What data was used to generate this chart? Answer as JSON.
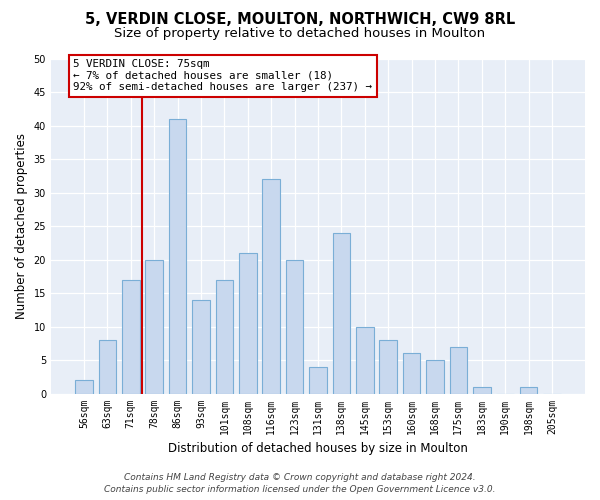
{
  "title": "5, VERDIN CLOSE, MOULTON, NORTHWICH, CW9 8RL",
  "subtitle": "Size of property relative to detached houses in Moulton",
  "xlabel": "Distribution of detached houses by size in Moulton",
  "ylabel": "Number of detached properties",
  "bins": [
    "56sqm",
    "63sqm",
    "71sqm",
    "78sqm",
    "86sqm",
    "93sqm",
    "101sqm",
    "108sqm",
    "116sqm",
    "123sqm",
    "131sqm",
    "138sqm",
    "145sqm",
    "153sqm",
    "160sqm",
    "168sqm",
    "175sqm",
    "183sqm",
    "190sqm",
    "198sqm",
    "205sqm"
  ],
  "values": [
    2,
    8,
    17,
    20,
    41,
    14,
    17,
    21,
    32,
    20,
    4,
    24,
    10,
    8,
    6,
    5,
    7,
    1,
    0,
    1,
    0
  ],
  "bar_color": "#c8d8ee",
  "bar_edge_color": "#7aaed6",
  "vline_color": "#cc0000",
  "annotation_text": "5 VERDIN CLOSE: 75sqm\n← 7% of detached houses are smaller (18)\n92% of semi-detached houses are larger (237) →",
  "annotation_box_color": "white",
  "annotation_box_edge": "#cc0000",
  "ylim": [
    0,
    50
  ],
  "yticks": [
    0,
    5,
    10,
    15,
    20,
    25,
    30,
    35,
    40,
    45,
    50
  ],
  "footer_line1": "Contains HM Land Registry data © Crown copyright and database right 2024.",
  "footer_line2": "Contains public sector information licensed under the Open Government Licence v3.0.",
  "bg_color": "#ffffff",
  "plot_bg_color": "#e8eef7",
  "title_fontsize": 10.5,
  "subtitle_fontsize": 9.5,
  "tick_fontsize": 7,
  "ylabel_fontsize": 8.5,
  "xlabel_fontsize": 8.5,
  "footer_fontsize": 6.5
}
